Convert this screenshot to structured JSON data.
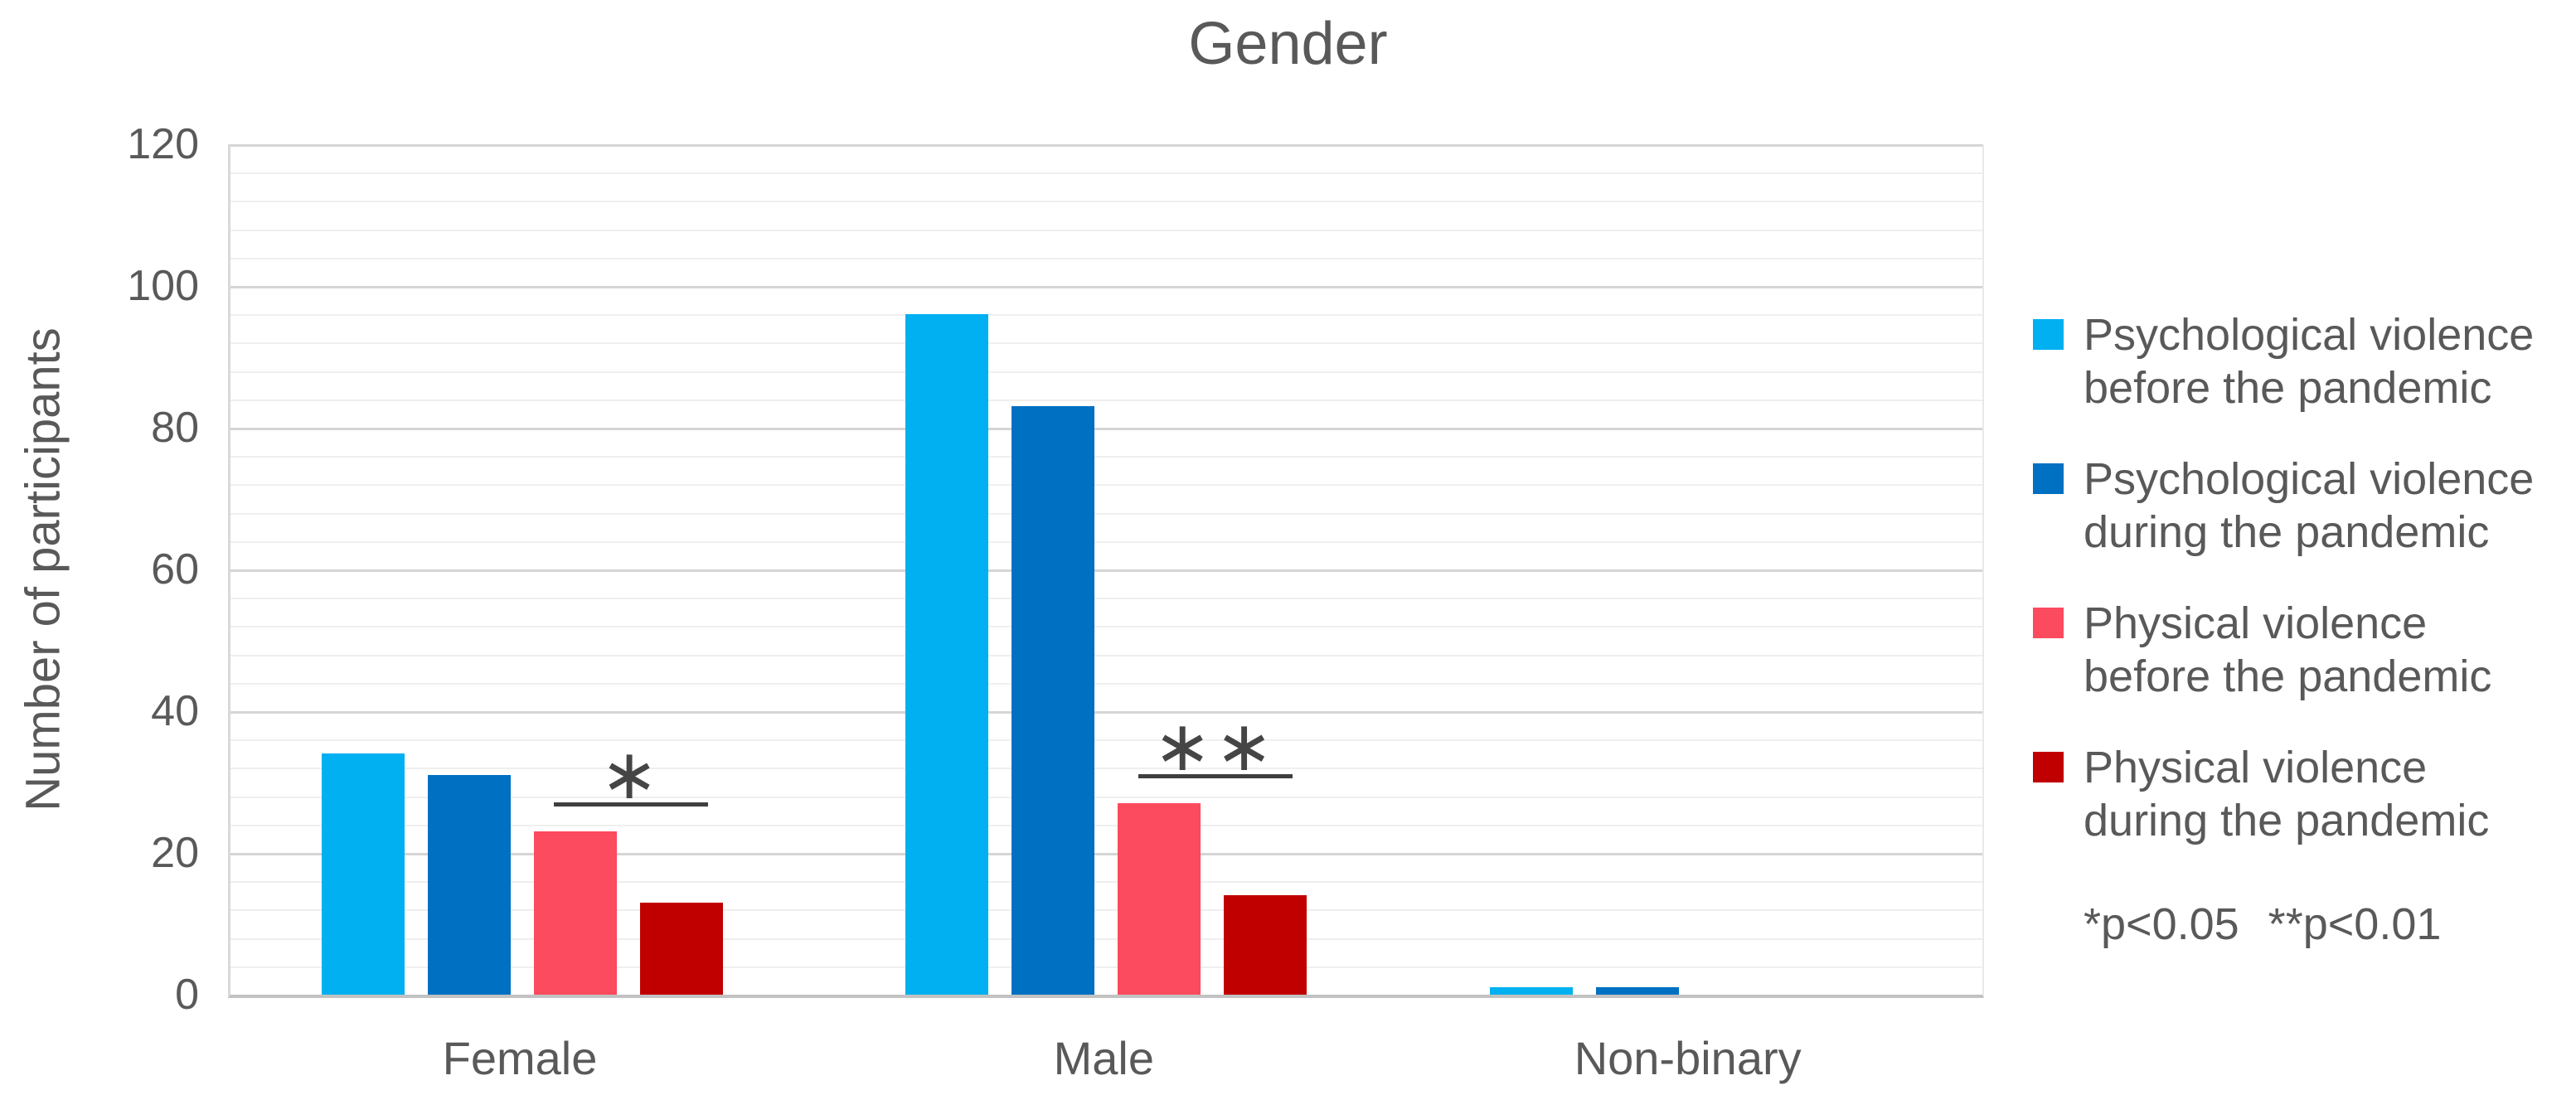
{
  "page": {
    "title": "Gender"
  },
  "chart_data": {
    "type": "bar",
    "title": "Gender",
    "xlabel": "",
    "ylabel": "Number of participants",
    "categories": [
      "Female",
      "Male",
      "Non-binary"
    ],
    "series": [
      {
        "name": "Psychological violence before the pandemic",
        "color": "#00B0F0",
        "values": [
          34,
          96,
          1
        ]
      },
      {
        "name": "Psychological violence during the pandemic",
        "color": "#0070C2",
        "values": [
          31,
          83,
          1
        ]
      },
      {
        "name": "Physical violence before the pandemic",
        "color": "#FC4A5E",
        "values": [
          23,
          27,
          0
        ]
      },
      {
        "name": "Physical violence during the pandemic",
        "color": "#C00000",
        "values": [
          13,
          14,
          0
        ]
      }
    ],
    "ylim": [
      0,
      120
    ],
    "yticks": [
      0,
      20,
      40,
      60,
      80,
      100,
      120
    ],
    "minor_gridline_interval": 4,
    "major_gridline_interval": 20,
    "grid": true,
    "legend_position": "right",
    "annotations": [
      {
        "category": "Female",
        "symbol": "*",
        "spans_series": [
          2,
          3
        ],
        "line_y": 26.5
      },
      {
        "category": "Male",
        "symbol": "**",
        "spans_series": [
          2,
          3
        ],
        "line_y": 30.5
      }
    ],
    "note": "*p<0.05 **p<0.01"
  },
  "legend": {
    "entries": [
      {
        "label": "Psychological violence\nbefore the pandemic"
      },
      {
        "label": "Psychological violence\nduring the pandemic"
      },
      {
        "label": "Physical violence\nbefore the pandemic"
      },
      {
        "label": "Physical violence\nduring the pandemic"
      }
    ],
    "note": "*p<0.05 **p<0.01"
  }
}
